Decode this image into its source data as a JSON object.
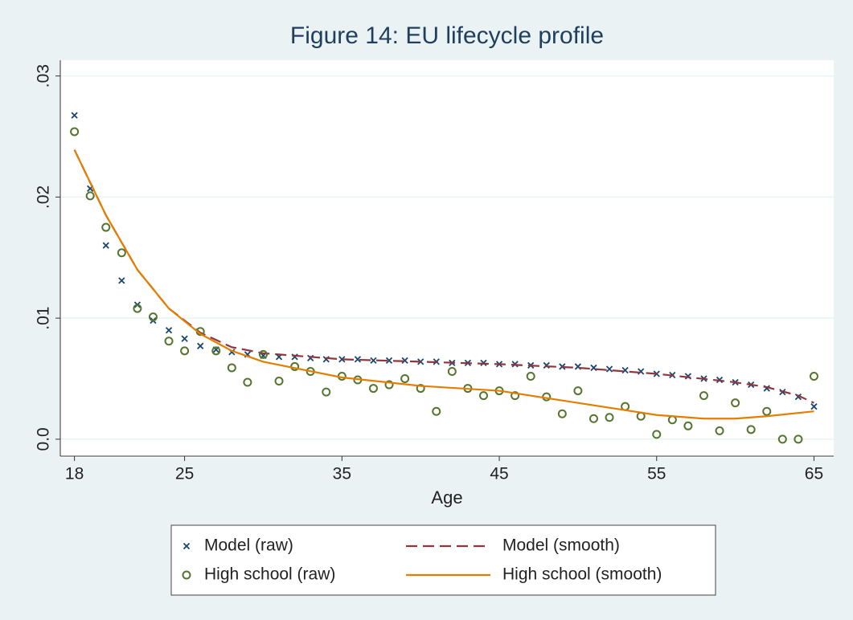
{
  "chart_data": {
    "type": "line",
    "title": "Figure 14: EU lifecycle profile",
    "x_label": "Age",
    "xlim": [
      17.1,
      66.1
    ],
    "xticks": [
      18,
      25,
      35,
      45,
      55,
      65
    ],
    "ylim": [
      -0.0014,
      0.0313
    ],
    "yticks": [
      {
        "value": 0,
        "label": "0.0"
      },
      {
        "value": 0.01,
        "label": ".01"
      },
      {
        "value": 0.02,
        "label": ".02"
      },
      {
        "value": 0.03,
        "label": ".03"
      }
    ],
    "grid": true,
    "legend": "bottom",
    "series": [
      {
        "name": "Model (raw)",
        "color": "#1a476f",
        "style": "x-marker",
        "x": [
          18,
          19,
          20,
          21,
          22,
          23,
          24,
          25,
          26,
          27,
          28,
          29,
          30,
          31,
          32,
          33,
          34,
          35,
          36,
          37,
          38,
          39,
          40,
          41,
          42,
          43,
          44,
          45,
          46,
          47,
          48,
          49,
          50,
          51,
          52,
          53,
          54,
          55,
          56,
          57,
          58,
          59,
          60,
          61,
          62,
          63,
          64,
          65
        ],
        "values": [
          0.02675,
          0.0207,
          0.016,
          0.0131,
          0.0111,
          0.0098,
          0.009,
          0.0083,
          0.0077,
          0.0074,
          0.0072,
          0.007,
          0.0069,
          0.0068,
          0.0068,
          0.0067,
          0.0066,
          0.0066,
          0.0066,
          0.0065,
          0.0065,
          0.0065,
          0.0064,
          0.0064,
          0.0063,
          0.0063,
          0.0063,
          0.0062,
          0.0062,
          0.0061,
          0.0061,
          0.006,
          0.006,
          0.0059,
          0.0058,
          0.0057,
          0.0056,
          0.0054,
          0.0053,
          0.0052,
          0.005,
          0.0049,
          0.0047,
          0.0045,
          0.0042,
          0.0039,
          0.0035,
          0.0027
        ]
      },
      {
        "name": "Model (smooth)",
        "color": "#90353b",
        "style": "dashed",
        "x": [
          18,
          20,
          22,
          24,
          26,
          28,
          30,
          35,
          40,
          45,
          50,
          55,
          60,
          62,
          64,
          65
        ],
        "values": [
          0.0239,
          0.0185,
          0.014,
          0.0108,
          0.0088,
          0.0076,
          0.0071,
          0.0066,
          0.0064,
          0.0062,
          0.0059,
          0.0054,
          0.0047,
          0.0043,
          0.0036,
          0.003
        ]
      },
      {
        "name": "High school (raw)",
        "color": "#55752f",
        "style": "circle-marker",
        "x": [
          18,
          19,
          20,
          21,
          22,
          23,
          24,
          25,
          26,
          27,
          28,
          29,
          30,
          31,
          32,
          33,
          34,
          35,
          36,
          37,
          38,
          39,
          40,
          41,
          42,
          43,
          44,
          45,
          46,
          47,
          48,
          49,
          50,
          51,
          52,
          53,
          54,
          55,
          56,
          57,
          58,
          59,
          60,
          61,
          62,
          63,
          64,
          65
        ],
        "values": [
          0.0254,
          0.0201,
          0.0175,
          0.0154,
          0.0108,
          0.0101,
          0.0081,
          0.0073,
          0.0089,
          0.0073,
          0.0059,
          0.0047,
          0.007,
          0.0048,
          0.006,
          0.0056,
          0.0039,
          0.0052,
          0.0049,
          0.0042,
          0.0045,
          0.005,
          0.0042,
          0.0023,
          0.0056,
          0.0042,
          0.0036,
          0.004,
          0.0036,
          0.0052,
          0.0035,
          0.0021,
          0.004,
          0.0017,
          0.0018,
          0.0027,
          0.0019,
          0.0004,
          0.0016,
          0.0011,
          0.0036,
          0.0007,
          0.003,
          0.0008,
          0.0023,
          0,
          0,
          0.0052
        ]
      },
      {
        "name": "High school (smooth)",
        "color": "#e37e00",
        "style": "solid",
        "x": [
          18,
          20,
          22,
          24,
          26,
          28,
          30,
          35,
          40,
          45,
          50,
          55,
          58,
          60,
          62,
          65
        ],
        "values": [
          0.0239,
          0.0185,
          0.014,
          0.0108,
          0.0087,
          0.0073,
          0.0064,
          0.0051,
          0.0044,
          0.004,
          0.003,
          0.002,
          0.0017,
          0.0017,
          0.0019,
          0.0023
        ]
      }
    ]
  }
}
